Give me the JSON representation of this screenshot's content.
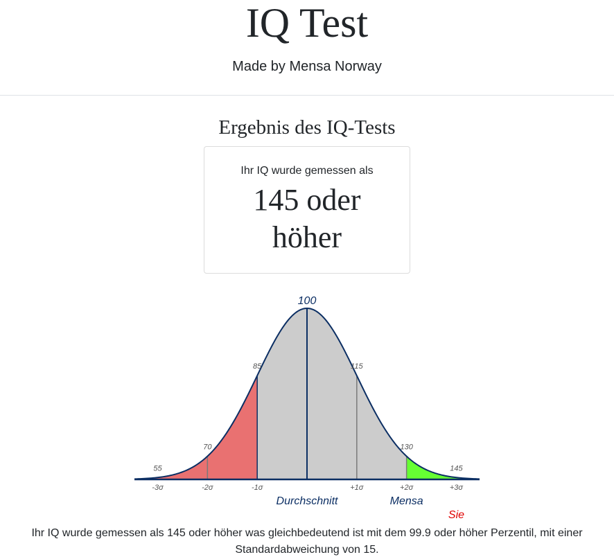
{
  "header": {
    "title": "IQ Test",
    "subtitle": "Made by Mensa Norway"
  },
  "result": {
    "heading": "Ergebnis des IQ-Tests",
    "card_label": "Ihr IQ wurde gemessen als",
    "card_value": "145 oder höher"
  },
  "chart_data": {
    "type": "area",
    "title": "",
    "mean": 100,
    "sd": 15,
    "x_range": [
      48,
      152
    ],
    "iq_labels": [
      {
        "iq": 55,
        "label": "55"
      },
      {
        "iq": 70,
        "label": "70"
      },
      {
        "iq": 85,
        "label": "85"
      },
      {
        "iq": 100,
        "label": "100"
      },
      {
        "iq": 115,
        "label": "115"
      },
      {
        "iq": 130,
        "label": "130"
      },
      {
        "iq": 145,
        "label": "145"
      }
    ],
    "sigma_labels": [
      {
        "iq": 55,
        "label": "-3σ"
      },
      {
        "iq": 70,
        "label": "-2σ"
      },
      {
        "iq": 85,
        "label": "-1σ"
      },
      {
        "iq": 115,
        "label": "+1σ"
      },
      {
        "iq": 130,
        "label": "+2σ"
      },
      {
        "iq": 145,
        "label": "+3σ"
      }
    ],
    "regions": [
      {
        "from": 48,
        "to": 85,
        "color": "#e97171"
      },
      {
        "from": 85,
        "to": 130,
        "color": "#cccccc"
      },
      {
        "from": 130,
        "to": 152,
        "color": "#66ff33"
      }
    ],
    "annotations": [
      {
        "iq": 100,
        "label": "Durchschnitt",
        "color": "#0b2e63"
      },
      {
        "iq": 130,
        "label": "Mensa",
        "color": "#0b2e63"
      },
      {
        "iq": 145,
        "label": "Sie",
        "color": "#e00000"
      }
    ],
    "colors": {
      "curve": "#0b2e63",
      "divider": "#7a7a7a",
      "label": "#555555",
      "mean_label": "#0b2e63"
    }
  },
  "summary": {
    "text": "Ihr IQ wurde gemessen als 145 oder höher was gleichbedeutend ist mit dem 99.9 oder höher Perzentil, mit einer Standardabweichung von 15."
  }
}
